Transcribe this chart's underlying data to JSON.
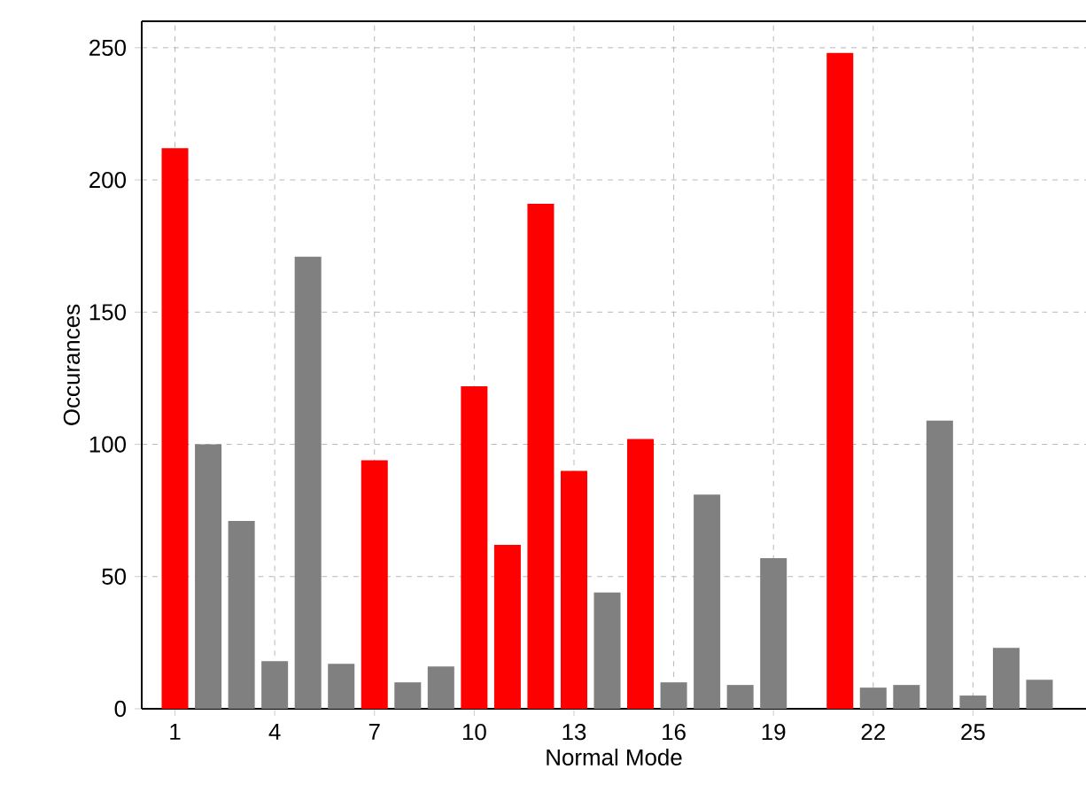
{
  "chart_data": {
    "type": "bar",
    "xlabel": "Normal Mode",
    "ylabel": "Occurances",
    "x": [
      1,
      2,
      3,
      4,
      5,
      6,
      7,
      8,
      9,
      10,
      11,
      12,
      13,
      14,
      15,
      16,
      17,
      18,
      19,
      20,
      21,
      22,
      23,
      24,
      25,
      26,
      27
    ],
    "values": [
      212,
      100,
      71,
      18,
      171,
      17,
      94,
      10,
      16,
      122,
      62,
      191,
      90,
      44,
      102,
      10,
      81,
      9,
      57,
      0,
      248,
      8,
      9,
      109,
      5,
      23,
      11
    ],
    "colors": [
      "#ff0000",
      "#808080",
      "#808080",
      "#808080",
      "#808080",
      "#808080",
      "#ff0000",
      "#808080",
      "#808080",
      "#ff0000",
      "#ff0000",
      "#ff0000",
      "#ff0000",
      "#808080",
      "#ff0000",
      "#808080",
      "#808080",
      "#808080",
      "#808080",
      "#808080",
      "#ff0000",
      "#808080",
      "#808080",
      "#808080",
      "#808080",
      "#808080",
      "#808080"
    ],
    "xlim": [
      0,
      28.4
    ],
    "ylim": [
      0,
      260
    ],
    "xticks": [
      1,
      4,
      7,
      10,
      13,
      16,
      19,
      22,
      25
    ],
    "yticks": [
      0,
      50,
      100,
      150,
      200,
      250
    ],
    "grid": true
  }
}
